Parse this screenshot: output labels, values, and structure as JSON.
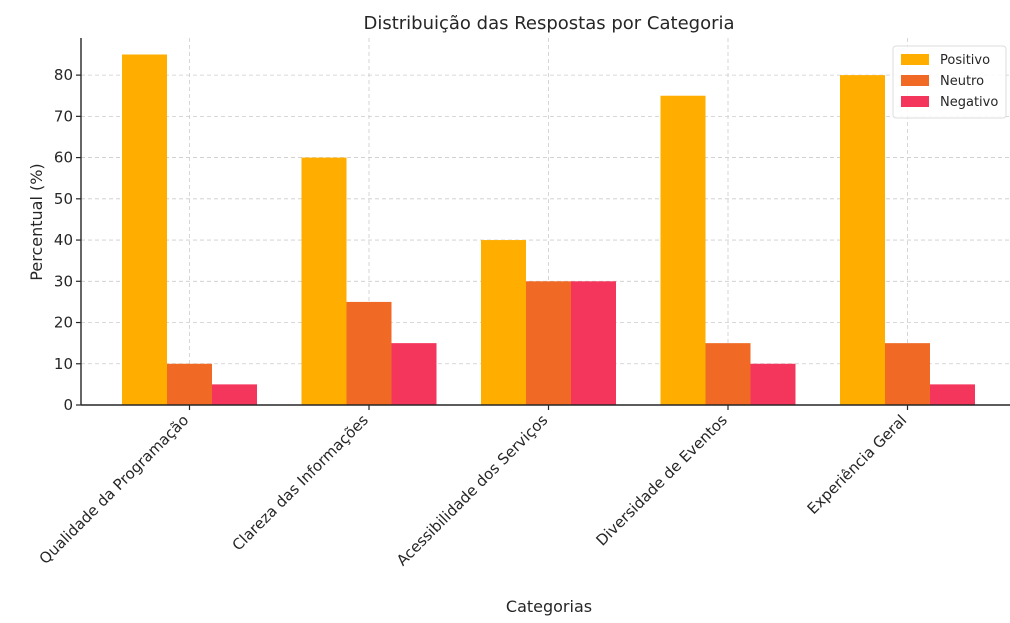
{
  "chart_data": {
    "type": "bar",
    "title": "Distribuição das Respostas por Categoria",
    "xlabel": "Categorias",
    "ylabel": "Percentual (%)",
    "categories": [
      "Qualidade da Programação",
      "Clareza das Informações",
      "Acessibilidade dos Serviços",
      "Diversidade de Eventos",
      "Experiência Geral"
    ],
    "series": [
      {
        "name": "Positivo",
        "color": "#FFAE00",
        "values": [
          85,
          60,
          40,
          75,
          80
        ]
      },
      {
        "name": "Neutro",
        "color": "#F06A25",
        "values": [
          10,
          25,
          30,
          15,
          15
        ]
      },
      {
        "name": "Negativo",
        "color": "#F5365C",
        "values": [
          5,
          15,
          30,
          10,
          5
        ]
      }
    ],
    "ylim": [
      0,
      89
    ],
    "yticks": [
      0,
      10,
      20,
      30,
      40,
      50,
      60,
      70,
      80
    ],
    "grid": true,
    "legend_position": "top-right",
    "x_tick_rotation": -45
  }
}
